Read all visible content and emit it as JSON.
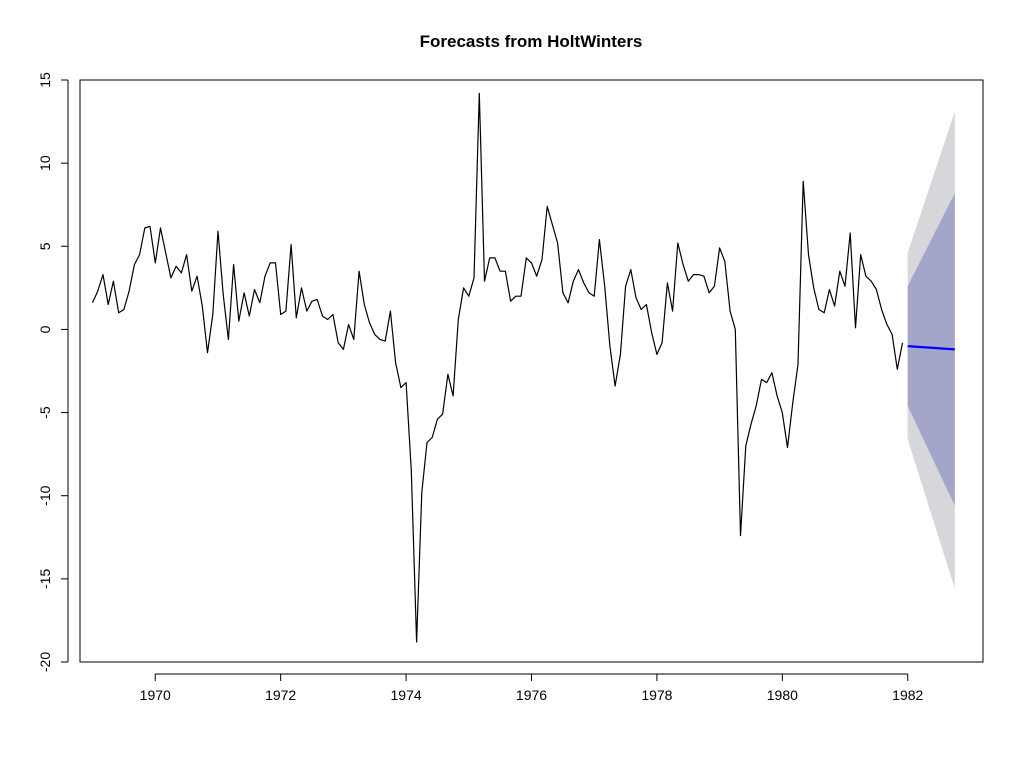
{
  "chart_data": {
    "type": "line",
    "title": "Forecasts from HoltWinters",
    "xlabel": "",
    "ylabel": "",
    "xlim": [
      1968.8,
      1983.2
    ],
    "ylim": [
      -20,
      15
    ],
    "xticks": [
      1970,
      1972,
      1974,
      1976,
      1978,
      1980,
      1982
    ],
    "yticks": [
      -20,
      -15,
      -10,
      -5,
      0,
      5,
      10,
      15
    ],
    "grid": false,
    "series": [
      {
        "color": "#000000",
        "x": [
          1969.0,
          1969.083,
          1969.167,
          1969.25,
          1969.333,
          1969.417,
          1969.5,
          1969.583,
          1969.667,
          1969.75,
          1969.833,
          1969.917,
          1970.0,
          1970.083,
          1970.167,
          1970.25,
          1970.333,
          1970.417,
          1970.5,
          1970.583,
          1970.667,
          1970.75,
          1970.833,
          1970.917,
          1971.0,
          1971.083,
          1971.167,
          1971.25,
          1971.333,
          1971.417,
          1971.5,
          1971.583,
          1971.667,
          1971.75,
          1971.833,
          1971.917,
          1972.0,
          1972.083,
          1972.167,
          1972.25,
          1972.333,
          1972.417,
          1972.5,
          1972.583,
          1972.667,
          1972.75,
          1972.833,
          1972.917,
          1973.0,
          1973.083,
          1973.167,
          1973.25,
          1973.333,
          1973.417,
          1973.5,
          1973.583,
          1973.667,
          1973.75,
          1973.833,
          1973.917,
          1974.0,
          1974.083,
          1974.167,
          1974.25,
          1974.333,
          1974.417,
          1974.5,
          1974.583,
          1974.667,
          1974.75,
          1974.833,
          1974.917,
          1975.0,
          1975.083,
          1975.167,
          1975.25,
          1975.333,
          1975.417,
          1975.5,
          1975.583,
          1975.667,
          1975.75,
          1975.833,
          1975.917,
          1976.0,
          1976.083,
          1976.167,
          1976.25,
          1976.333,
          1976.417,
          1976.5,
          1976.583,
          1976.667,
          1976.75,
          1976.833,
          1976.917,
          1977.0,
          1977.083,
          1977.167,
          1977.25,
          1977.333,
          1977.417,
          1977.5,
          1977.583,
          1977.667,
          1977.75,
          1977.833,
          1977.917,
          1978.0,
          1978.083,
          1978.167,
          1978.25,
          1978.333,
          1978.417,
          1978.5,
          1978.583,
          1978.667,
          1978.75,
          1978.833,
          1978.917,
          1979.0,
          1979.083,
          1979.167,
          1979.25,
          1979.333,
          1979.417,
          1979.5,
          1979.583,
          1979.667,
          1979.75,
          1979.833,
          1979.917,
          1980.0,
          1980.083,
          1980.167,
          1980.25,
          1980.333,
          1980.417,
          1980.5,
          1980.583,
          1980.667,
          1980.75,
          1980.833,
          1980.917,
          1981.0,
          1981.083,
          1981.167,
          1981.25,
          1981.333,
          1981.417,
          1981.5,
          1981.583,
          1981.667,
          1981.75,
          1981.833,
          1981.917
        ],
        "y": [
          1.6,
          2.3,
          3.3,
          1.5,
          2.9,
          1.0,
          1.2,
          2.3,
          3.9,
          4.5,
          6.1,
          6.2,
          4.0,
          6.1,
          4.6,
          3.1,
          3.8,
          3.4,
          4.5,
          2.3,
          3.2,
          1.4,
          -1.4,
          0.9,
          5.9,
          2.1,
          -0.6,
          3.9,
          0.5,
          2.2,
          0.8,
          2.4,
          1.6,
          3.2,
          4.0,
          4.0,
          0.9,
          1.1,
          5.1,
          0.7,
          2.5,
          1.1,
          1.7,
          1.8,
          0.8,
          0.6,
          0.9,
          -0.8,
          -1.2,
          0.3,
          -0.6,
          3.5,
          1.5,
          0.4,
          -0.3,
          -0.6,
          -0.7,
          1.1,
          -2.0,
          -3.5,
          -3.2,
          -8.5,
          -18.8,
          -9.8,
          -6.8,
          -6.5,
          -5.4,
          -5.1,
          -2.7,
          -4.0,
          0.6,
          2.5,
          2.0,
          3.1,
          14.2,
          2.9,
          4.3,
          4.3,
          3.5,
          3.5,
          1.7,
          2.0,
          2.0,
          4.3,
          4.0,
          3.2,
          4.2,
          7.4,
          6.3,
          5.2,
          2.2,
          1.6,
          2.9,
          3.6,
          2.8,
          2.2,
          2.0,
          5.4,
          2.6,
          -1.0,
          -3.4,
          -1.5,
          2.6,
          3.6,
          1.9,
          1.2,
          1.5,
          -0.2,
          -1.5,
          -0.8,
          2.8,
          1.1,
          5.2,
          3.9,
          2.9,
          3.3,
          3.3,
          3.2,
          2.2,
          2.6,
          4.9,
          4.1,
          1.1,
          0.0,
          -12.4,
          -7.0,
          -5.7,
          -4.6,
          -3.0,
          -3.2,
          -2.6,
          -4.0,
          -5.0,
          -7.1,
          -4.4,
          -2.1,
          8.9,
          4.5,
          2.5,
          1.2,
          1.0,
          2.4,
          1.4,
          3.5,
          2.6,
          5.8,
          0.1,
          4.5,
          3.2,
          2.9,
          2.4,
          1.2,
          0.3,
          -0.3,
          -2.4,
          -0.8
        ]
      },
      {
        "color": "#0000ff",
        "x": [
          1982.0,
          1982.75
        ],
        "y": [
          -1.0,
          -1.2
        ]
      }
    ],
    "bands": [
      {
        "level": "95",
        "color": "#d6d6db",
        "x": [
          1982.0,
          1982.75
        ],
        "upper": [
          4.6,
          13.1
        ],
        "lower": [
          -6.6,
          -15.6
        ]
      },
      {
        "level": "80",
        "color": "#a3a6c8",
        "x": [
          1982.0,
          1982.75
        ],
        "upper": [
          2.6,
          8.2
        ],
        "lower": [
          -4.6,
          -10.6
        ]
      }
    ]
  }
}
